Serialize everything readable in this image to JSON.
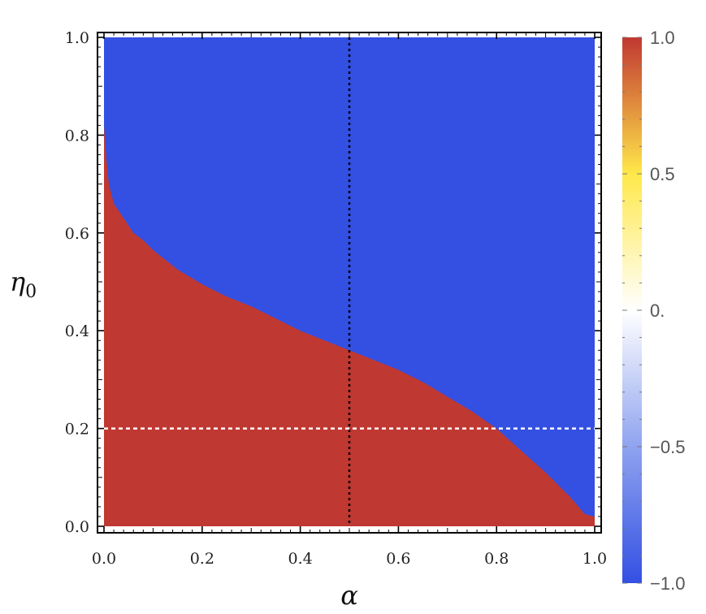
{
  "chart_data": {
    "type": "heatmap",
    "title": "",
    "xlabel": "α",
    "ylabel": "η",
    "ylabel_subscript": "0",
    "xlim": [
      0,
      1
    ],
    "ylim": [
      0,
      1
    ],
    "x_ticks": [
      "0.0",
      "0.2",
      "0.4",
      "0.6",
      "0.8",
      "1.0"
    ],
    "y_ticks": [
      "0.0",
      "0.2",
      "0.4",
      "0.6",
      "0.8",
      "1.0"
    ],
    "x_tick_values": [
      0,
      0.2,
      0.4,
      0.6,
      0.8,
      1.0
    ],
    "y_tick_values": [
      0,
      0.2,
      0.4,
      0.6,
      0.8,
      1.0
    ],
    "colorbar": {
      "range": [
        -1.0,
        1.0
      ],
      "tick_values": [
        1.0,
        0.5,
        0,
        -0.5,
        -1.0
      ],
      "tick_labels": [
        "1.0",
        "0.5",
        "0.",
        "−0.5",
        "−1.0"
      ],
      "colors": [
        "#3350e3",
        "#ffffff",
        "#ffe84a",
        "#c03832"
      ]
    },
    "regions": [
      {
        "value": 1.0,
        "color": "#c03832",
        "where": "below boundary"
      },
      {
        "value": -1.0,
        "color": "#3350e3",
        "where": "above boundary"
      }
    ],
    "boundary": {
      "x": [
        0.0,
        0.005,
        0.01,
        0.02,
        0.04,
        0.06,
        0.08,
        0.1,
        0.15,
        0.2,
        0.25,
        0.3,
        0.35,
        0.4,
        0.45,
        0.5,
        0.55,
        0.6,
        0.65,
        0.7,
        0.75,
        0.8,
        0.85,
        0.9,
        0.95,
        0.98,
        1.0
      ],
      "y": [
        0.82,
        0.75,
        0.7,
        0.66,
        0.63,
        0.6,
        0.585,
        0.565,
        0.525,
        0.495,
        0.47,
        0.45,
        0.425,
        0.4,
        0.38,
        0.36,
        0.34,
        0.32,
        0.295,
        0.265,
        0.235,
        0.2,
        0.155,
        0.11,
        0.06,
        0.025,
        0.02
      ]
    },
    "reference_lines": [
      {
        "orientation": "vertical",
        "x": 0.5,
        "style": "dotted",
        "color": "#000000"
      },
      {
        "orientation": "horizontal",
        "y": 0.2,
        "style": "dashed",
        "color": "#ffffff"
      }
    ]
  }
}
